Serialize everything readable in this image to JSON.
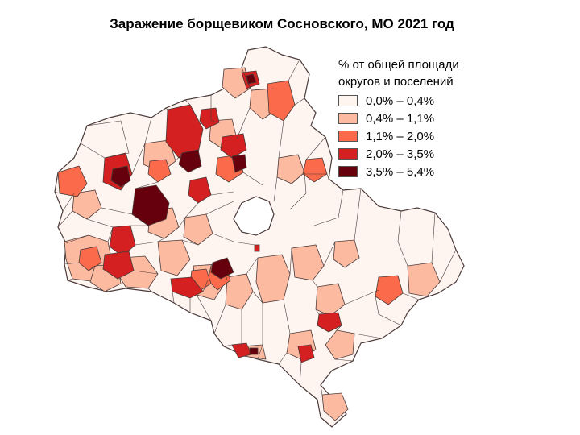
{
  "title": "Заражение борщевиком Сосновского, МО 2021 год",
  "legend": {
    "title_line1": "% от общей  площади",
    "title_line2": "округов и поселений",
    "items": [
      {
        "label": "0,0% – 0,4%",
        "color": "#fff5f0"
      },
      {
        "label": "0,4% – 1,1%",
        "color": "#fcbba1"
      },
      {
        "label": "1,1% – 2,0%",
        "color": "#fb6a4a"
      },
      {
        "label": "2,0% – 3,5%",
        "color": "#d42020"
      },
      {
        "label": "3,5% – 5,4%",
        "color": "#67000d"
      }
    ]
  },
  "colors": {
    "border": "#4a3a3a",
    "background": "#ffffff"
  }
}
